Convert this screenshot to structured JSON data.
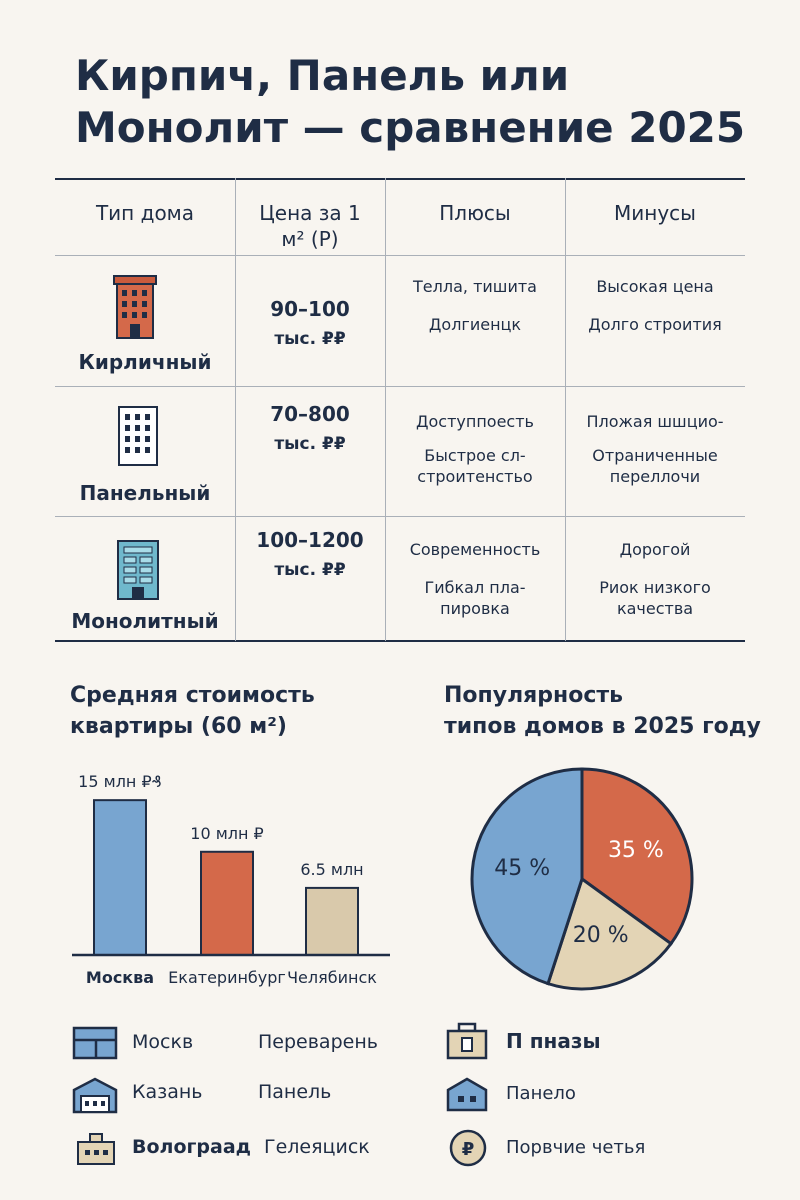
{
  "title_line1": "Кирпич, Панель или",
  "title_line2": "Монолит — сравнение 2025",
  "table": {
    "headers": [
      "Тип дома",
      "Цена за 1 м² (Р)",
      "Плюсы",
      "Минусы"
    ],
    "header_price_line1": "Цена за 1",
    "header_price_line2": "м² (Р)",
    "rows": [
      {
        "name": "Кирличный",
        "price_line1": "90–100",
        "price_line2": "тыс. ₽₽",
        "pros": [
          "Телла, тишита",
          "Долгиенцк"
        ],
        "cons": [
          "Высокая цена",
          "Долго строития"
        ],
        "color": "#d4694a"
      },
      {
        "name": "Панельный",
        "price_line1": "70–800",
        "price_line2": "тыс. ₽₽",
        "pros": [
          "Доступпоесть",
          "Быстрое сл-",
          "строитенстьо"
        ],
        "cons": [
          "Пложая шшцио-",
          "Отраниченные",
          "переллочи"
        ],
        "color": "#ffffff"
      },
      {
        "name": "Монолитный",
        "price_line1": "100–1200",
        "price_line2": "тыс. ₽₽",
        "pros": [
          "Современность",
          "Гибкал пла-",
          "пировка"
        ],
        "cons": [
          "Дорогой",
          "Риок низкого",
          "качества"
        ],
        "color": "#6fb8cc"
      }
    ]
  },
  "bar_section": {
    "title_line1": "Средняя стоимость",
    "title_line2": "квартиры (60 м²)"
  },
  "pie_section": {
    "title_line1": "Популярность",
    "title_line2": "типов домов в 2025 году"
  },
  "chart_data": [
    {
      "type": "bar",
      "title": "Средняя стоимость квартиры (60 м²)",
      "categories": [
        "Москва",
        "Екатеринбург",
        "Челябинск"
      ],
      "values": [
        15,
        10,
        6.5
      ],
      "value_labels": [
        "15 млн ₽₰",
        "10 млн ₽",
        "6.5 млн"
      ],
      "colors": [
        "#78a5d0",
        "#d4694a",
        "#d9c9ab"
      ],
      "ylim": [
        0,
        15.5
      ]
    },
    {
      "type": "pie",
      "title": "Популярность типов домов в 2025 году",
      "labels": [
        "45 %",
        "35 %",
        "20 %"
      ],
      "values": [
        45,
        35,
        20
      ],
      "colors": [
        "#78a5d0",
        "#d4694a",
        "#e3d4b5"
      ]
    }
  ],
  "legend": {
    "left_col1": [
      "Москв",
      "Казань",
      "Волограад"
    ],
    "left_col2": [
      "Переварень",
      "Панель",
      "Гелеяциск"
    ],
    "right": [
      "П пназы",
      "Панело",
      "Порвчие четья"
    ],
    "right_icon_glyph": "₽"
  }
}
